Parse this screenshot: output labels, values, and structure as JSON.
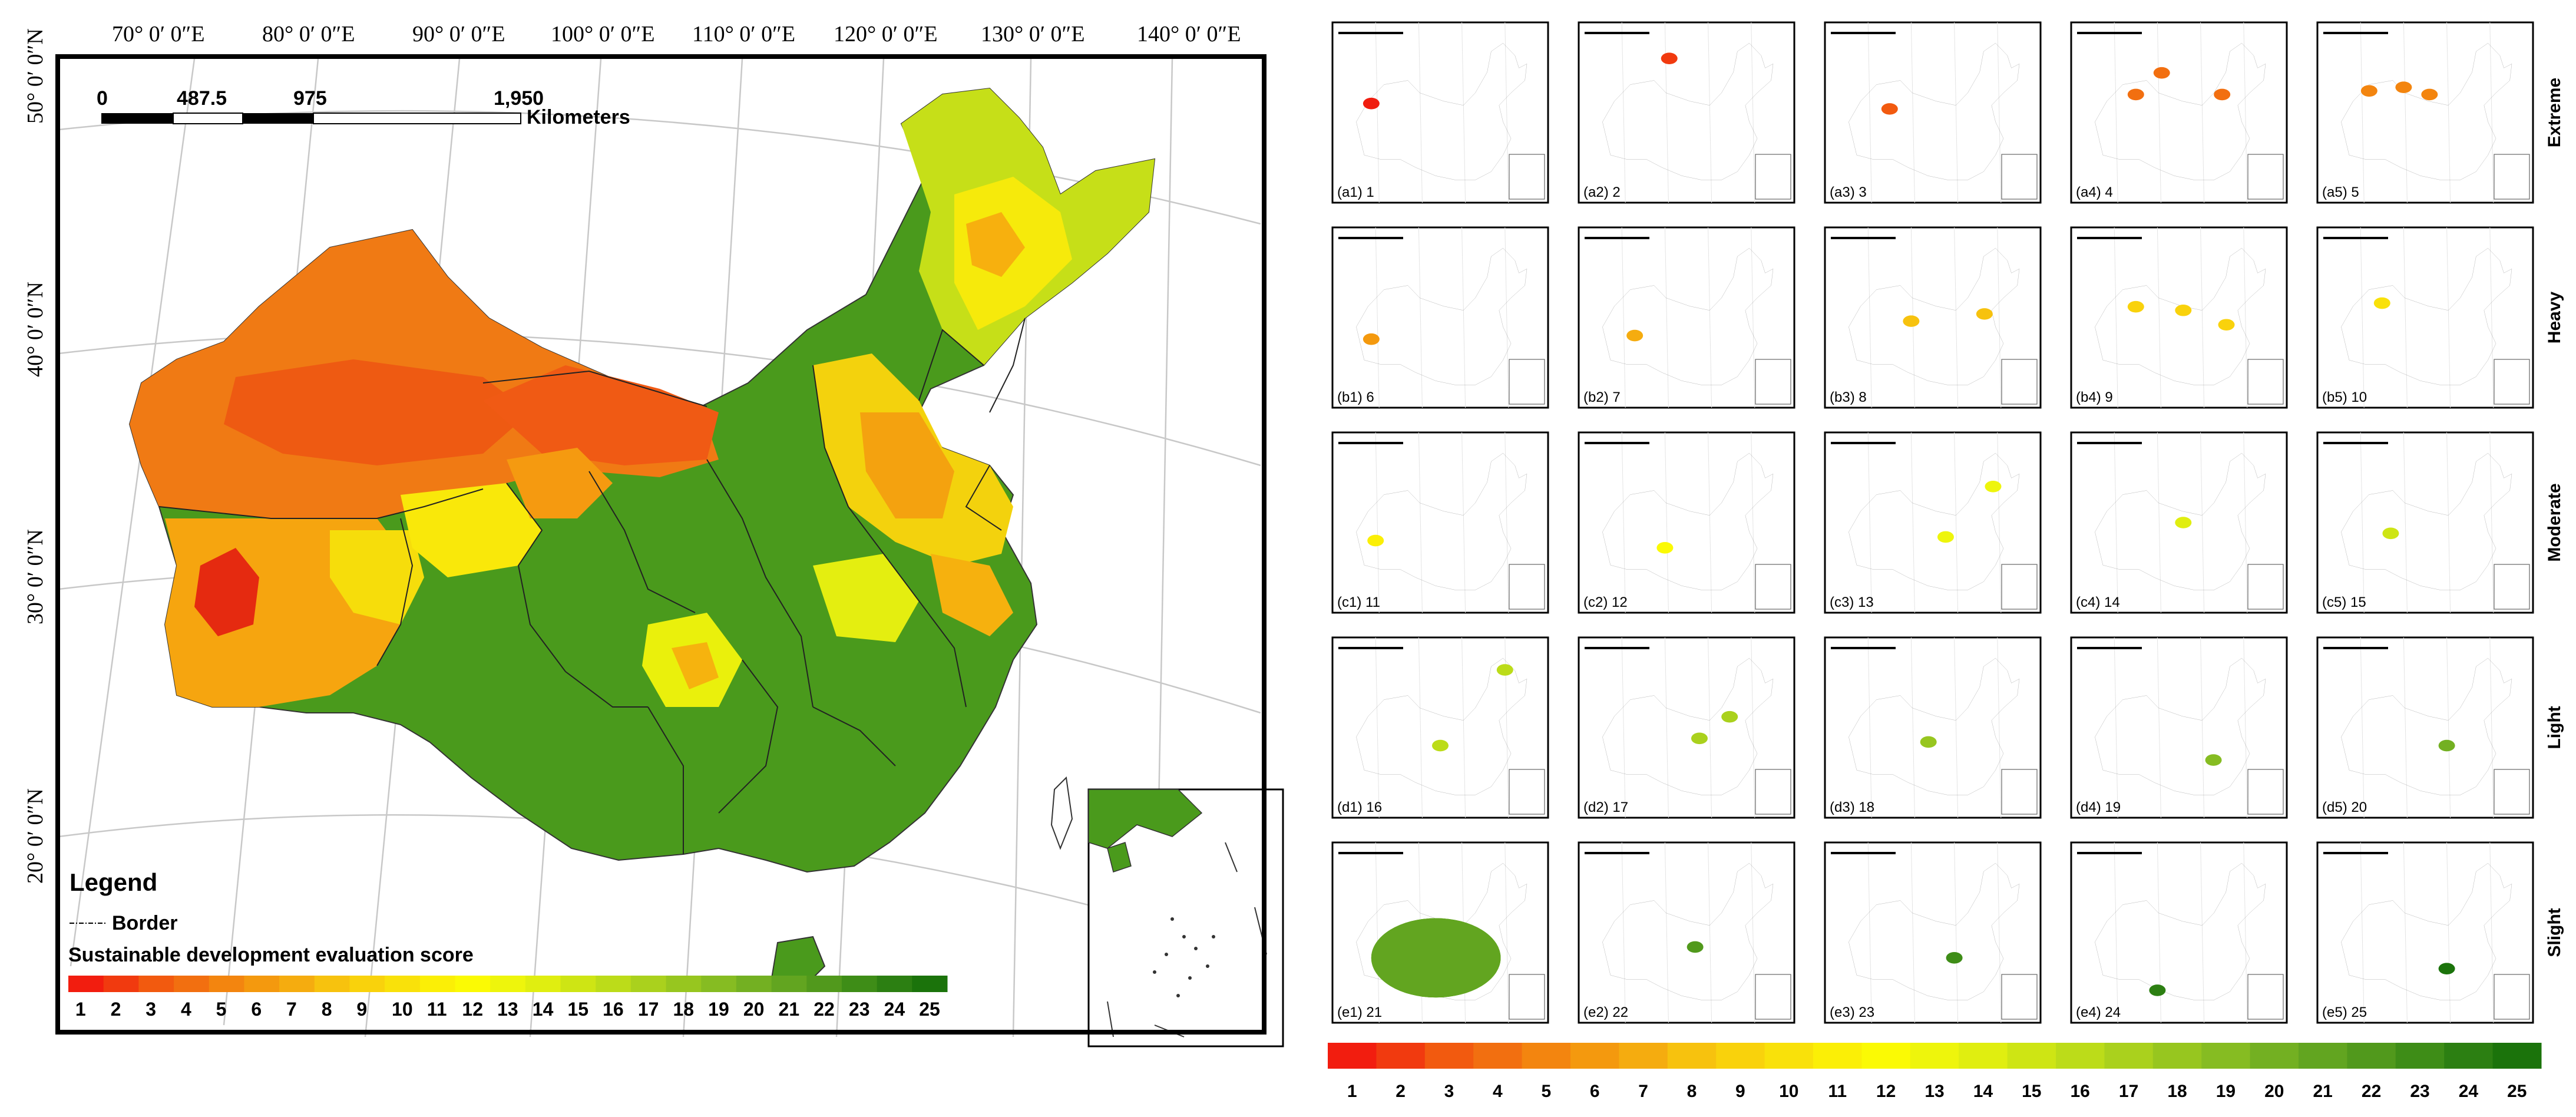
{
  "main_map": {
    "lon_labels": [
      "70° 0′ 0″E",
      "80° 0′ 0″E",
      "90° 0′ 0″E",
      "100° 0′ 0″E",
      "110° 0′ 0″E",
      "120° 0′ 0″E",
      "130° 0′ 0″E",
      "140° 0′ 0″E"
    ],
    "lat_labels": [
      "50° 0′ 0″N",
      "40° 0′ 0″N",
      "30° 0′ 0″N",
      "20° 0′ 0″N"
    ],
    "scale_bar": {
      "ticks": [
        "0",
        "487.5",
        "975",
        "1,950"
      ],
      "unit": "Kilometers"
    },
    "legend": {
      "title": "Legend",
      "border_label": "Border",
      "score_title": "Sustainable development evaluation score"
    }
  },
  "score_scale": {
    "values": [
      "1",
      "2",
      "3",
      "4",
      "5",
      "6",
      "7",
      "8",
      "9",
      "10",
      "11",
      "12",
      "13",
      "14",
      "15",
      "16",
      "17",
      "18",
      "19",
      "20",
      "21",
      "22",
      "23",
      "24",
      "25"
    ],
    "colors": [
      "#f21d0f",
      "#f13a0f",
      "#f25a0f",
      "#f26f10",
      "#f3850f",
      "#f4990e",
      "#f5ac0f",
      "#f7c20e",
      "#f9d20c",
      "#f9e10a",
      "#fbef06",
      "#fbfa04",
      "#eef50c",
      "#e0ee10",
      "#cee514",
      "#bcdc19",
      "#aad11d",
      "#97c61f",
      "#86bc22",
      "#73b022",
      "#62a520",
      "#51991c",
      "#3e8d17",
      "#2c7f12",
      "#1b730b"
    ]
  },
  "panels": {
    "rows": [
      {
        "label": "Extreme",
        "items": [
          "(a1) 1",
          "(a2) 2",
          "(a3) 3",
          "(a4) 4",
          "(a5) 5"
        ]
      },
      {
        "label": "Heavy",
        "items": [
          "(b1) 6",
          "(b2) 7",
          "(b3) 8",
          "(b4) 9",
          "(b5) 10"
        ]
      },
      {
        "label": "Moderate",
        "items": [
          "(c1) 11",
          "(c2) 12",
          "(c3) 13",
          "(c4) 14",
          "(c5) 15"
        ]
      },
      {
        "label": "Light",
        "items": [
          "(d1) 16",
          "(d2) 17",
          "(d3) 18",
          "(d4) 19",
          "(d5) 20"
        ]
      },
      {
        "label": "Slight",
        "items": [
          "(e1) 21",
          "(e2) 22",
          "(e3) 23",
          "(e4) 24",
          "(e5) 25"
        ]
      }
    ]
  }
}
